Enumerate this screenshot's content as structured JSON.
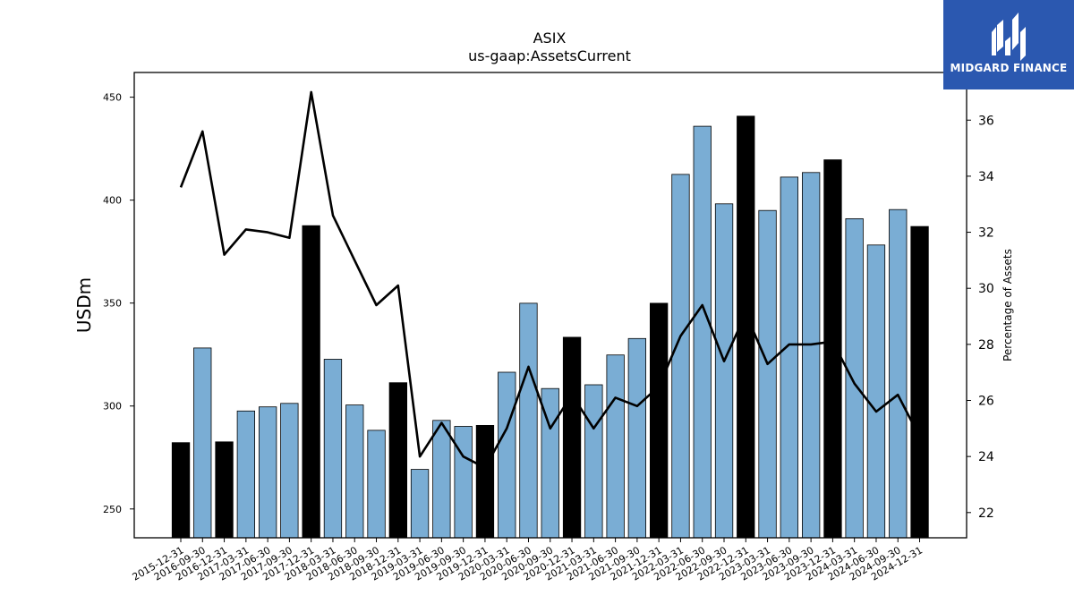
{
  "chart_data": {
    "type": "bar",
    "title": "ASIX",
    "subtitle": "us-gaap:AssetsCurrent",
    "ylabel": "USDm",
    "ylabel_right": "Percentage of Assets",
    "ylim": [
      236,
      462
    ],
    "ylim_right": [
      21.1,
      37.7
    ],
    "yticks": [
      250,
      300,
      350,
      400,
      450
    ],
    "yticks_right": [
      22,
      24,
      26,
      28,
      30,
      32,
      34,
      36
    ],
    "categories": [
      "2015-12-31",
      "2016-09-30",
      "2016-12-31",
      "2017-03-31",
      "2017-06-30",
      "2017-09-30",
      "2017-12-31",
      "2018-03-31",
      "2018-06-30",
      "2018-09-30",
      "2018-12-31",
      "2019-03-31",
      "2019-06-30",
      "2019-09-30",
      "2019-12-31",
      "2020-03-31",
      "2020-06-30",
      "2020-09-30",
      "2020-12-31",
      "2021-03-31",
      "2021-06-30",
      "2021-09-30",
      "2021-12-31",
      "2022-03-31",
      "2022-06-30",
      "2022-09-30",
      "2022-12-31",
      "2023-03-31",
      "2023-06-30",
      "2023-09-30",
      "2023-12-31",
      "2024-03-31",
      "2024-06-30",
      "2024-09-30",
      "2024-12-31"
    ],
    "series": [
      {
        "type": "bar",
        "values": [
          282.2,
          328.2,
          282.6,
          297.6,
          299.6,
          301.3,
          387.6,
          322.7,
          300.5,
          288.2,
          311.3,
          269.2,
          293.0,
          290.1,
          290.6,
          316.4,
          349.9,
          308.5,
          333.4,
          310.3,
          324.8,
          332.8,
          349.9,
          412.5,
          435.9,
          398.2,
          440.8,
          395.0,
          411.2,
          413.4,
          419.6,
          391.0,
          378.2,
          395.4,
          387.2
        ],
        "annual": [
          true,
          false,
          true,
          false,
          false,
          false,
          true,
          false,
          false,
          false,
          true,
          false,
          false,
          false,
          true,
          false,
          false,
          false,
          true,
          false,
          false,
          false,
          true,
          false,
          false,
          false,
          true,
          false,
          false,
          false,
          true,
          false,
          false,
          false,
          true
        ]
      },
      {
        "type": "line",
        "axis": "right",
        "values": [
          33.6,
          35.6,
          31.2,
          32.1,
          32.0,
          31.8,
          37.0,
          32.6,
          31.0,
          29.4,
          30.1,
          24.0,
          25.2,
          24.0,
          23.6,
          25.0,
          27.2,
          25.0,
          26.2,
          25.0,
          26.1,
          25.8,
          26.5,
          28.3,
          29.4,
          27.4,
          29.1,
          27.3,
          28.0,
          28.0,
          28.1,
          26.6,
          25.6,
          26.2,
          24.7
        ]
      }
    ],
    "colors": {
      "bar": "#7aadd4",
      "bar_annual": "#000000",
      "line": "#000000"
    }
  },
  "logo": {
    "text": "MIDGARD FINANCE",
    "color": "#2b58b0"
  }
}
